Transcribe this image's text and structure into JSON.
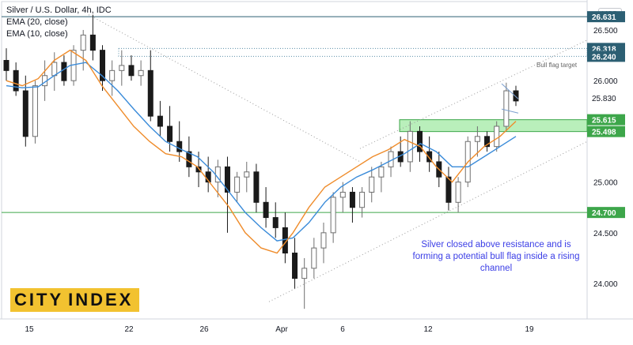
{
  "header": {
    "title": "Silver / U.S. Dollar, 4h, IDC",
    "ema20_label": "EMA (20, close)",
    "ema10_label": "EMA (10, close)"
  },
  "currency": "USD",
  "annotation": {
    "text": "Silver closed above resistance and is forming a potential bull flag inside a rising channel",
    "bull_flag_label": "Bull flag target"
  },
  "logo": {
    "word1": "CITY",
    "word2": "INDEX"
  },
  "colors": {
    "up": "#6f6f6f",
    "down": "#1a1a1a",
    "ema20": "#3a8bd9",
    "ema10": "#ef8c2b",
    "level_line": "#3da64a",
    "zone_fill": "#b9efbb",
    "zone_border": "#3da64a",
    "text_annotation": "#3b3ee6",
    "trendline": "#9a9a9a"
  },
  "chart_data": {
    "type": "candlestick",
    "title": "Silver / U.S. Dollar, 4h, IDC",
    "x_tick_labels": [
      "15",
      "22",
      "26",
      "Apr",
      "6",
      "12",
      "19"
    ],
    "y_tick_labels": [
      "24.000",
      "24.500",
      "25.000",
      "25.500",
      "26.000",
      "26.500"
    ],
    "ylim": [
      23.65,
      26.78
    ],
    "price_levels": [
      26.631,
      26.318,
      26.24,
      25.83,
      25.615,
      25.498,
      24.7
    ],
    "price_level_labels": [
      "26.631",
      "26.318",
      "26.240",
      "25.830",
      "25.615",
      "25.498",
      "24.700"
    ],
    "resistance_zone": [
      25.498,
      25.615
    ],
    "bull_flag_target_zone": [
      26.24,
      26.318
    ],
    "series": [
      {
        "name": "EMA (20, close)",
        "values": [
          25.95,
          25.93,
          25.94,
          26.05,
          26.15,
          26.18,
          26.05,
          25.9,
          25.72,
          25.55,
          25.4,
          25.32,
          25.25,
          25.1,
          24.9,
          24.7,
          24.55,
          24.42,
          24.45,
          24.6,
          24.8,
          24.95,
          25.05,
          25.12,
          25.2,
          25.28,
          25.38,
          25.3,
          25.15,
          25.15,
          25.25,
          25.35,
          25.45
        ]
      },
      {
        "name": "EMA (10, close)",
        "values": [
          26.0,
          25.95,
          26.02,
          26.2,
          26.3,
          26.2,
          25.95,
          25.75,
          25.55,
          25.4,
          25.28,
          25.25,
          25.15,
          24.95,
          24.75,
          24.5,
          24.35,
          24.3,
          24.5,
          24.75,
          24.95,
          25.05,
          25.15,
          25.25,
          25.32,
          25.42,
          25.35,
          25.15,
          25.0,
          25.2,
          25.35,
          25.45,
          25.6
        ]
      }
    ],
    "candles": [
      {
        "o": 26.2,
        "h": 26.32,
        "l": 26.0,
        "c": 26.1
      },
      {
        "o": 26.1,
        "h": 26.18,
        "l": 25.85,
        "c": 25.9
      },
      {
        "o": 25.9,
        "h": 26.05,
        "l": 25.35,
        "c": 25.45
      },
      {
        "o": 25.45,
        "h": 26.0,
        "l": 25.38,
        "c": 25.95
      },
      {
        "o": 25.95,
        "h": 26.2,
        "l": 25.8,
        "c": 26.05
      },
      {
        "o": 26.05,
        "h": 26.28,
        "l": 25.9,
        "c": 26.18
      },
      {
        "o": 26.18,
        "h": 26.25,
        "l": 25.95,
        "c": 26.0
      },
      {
        "o": 26.0,
        "h": 26.35,
        "l": 25.95,
        "c": 26.3
      },
      {
        "o": 26.3,
        "h": 26.5,
        "l": 26.1,
        "c": 26.45
      },
      {
        "o": 26.45,
        "h": 26.65,
        "l": 26.2,
        "c": 26.3
      },
      {
        "o": 26.3,
        "h": 26.35,
        "l": 25.9,
        "c": 26.0
      },
      {
        "o": 26.0,
        "h": 26.2,
        "l": 25.85,
        "c": 26.1
      },
      {
        "o": 26.1,
        "h": 26.3,
        "l": 25.95,
        "c": 26.15
      },
      {
        "o": 26.15,
        "h": 26.25,
        "l": 26.0,
        "c": 26.05
      },
      {
        "o": 26.05,
        "h": 26.2,
        "l": 25.95,
        "c": 26.1
      },
      {
        "o": 26.1,
        "h": 26.3,
        "l": 25.6,
        "c": 25.65
      },
      {
        "o": 25.65,
        "h": 25.8,
        "l": 25.45,
        "c": 25.55
      },
      {
        "o": 25.55,
        "h": 25.75,
        "l": 25.3,
        "c": 25.4
      },
      {
        "o": 25.4,
        "h": 25.6,
        "l": 25.2,
        "c": 25.3
      },
      {
        "o": 25.3,
        "h": 25.45,
        "l": 25.05,
        "c": 25.15
      },
      {
        "o": 25.15,
        "h": 25.3,
        "l": 24.95,
        "c": 25.1
      },
      {
        "o": 25.1,
        "h": 25.25,
        "l": 24.9,
        "c": 25.0
      },
      {
        "o": 25.0,
        "h": 25.22,
        "l": 24.85,
        "c": 25.15
      },
      {
        "o": 25.15,
        "h": 25.25,
        "l": 24.5,
        "c": 24.9
      },
      {
        "o": 24.9,
        "h": 25.1,
        "l": 24.8,
        "c": 25.05
      },
      {
        "o": 25.05,
        "h": 25.2,
        "l": 24.9,
        "c": 25.1
      },
      {
        "o": 25.1,
        "h": 25.18,
        "l": 24.7,
        "c": 24.8
      },
      {
        "o": 24.8,
        "h": 24.95,
        "l": 24.55,
        "c": 24.65
      },
      {
        "o": 24.65,
        "h": 24.8,
        "l": 24.45,
        "c": 24.55
      },
      {
        "o": 24.55,
        "h": 24.7,
        "l": 24.2,
        "c": 24.3
      },
      {
        "o": 24.3,
        "h": 24.45,
        "l": 23.95,
        "c": 24.05
      },
      {
        "o": 24.05,
        "h": 24.25,
        "l": 23.75,
        "c": 24.15
      },
      {
        "o": 24.15,
        "h": 24.45,
        "l": 24.05,
        "c": 24.35
      },
      {
        "o": 24.35,
        "h": 24.6,
        "l": 24.2,
        "c": 24.5
      },
      {
        "o": 24.5,
        "h": 24.9,
        "l": 24.4,
        "c": 24.85
      },
      {
        "o": 24.85,
        "h": 25.0,
        "l": 24.7,
        "c": 24.9
      },
      {
        "o": 24.9,
        "h": 24.95,
        "l": 24.6,
        "c": 24.75
      },
      {
        "o": 24.75,
        "h": 24.95,
        "l": 24.65,
        "c": 24.9
      },
      {
        "o": 24.9,
        "h": 25.15,
        "l": 24.8,
        "c": 25.05
      },
      {
        "o": 25.05,
        "h": 25.2,
        "l": 24.9,
        "c": 25.15
      },
      {
        "o": 25.15,
        "h": 25.35,
        "l": 25.05,
        "c": 25.3
      },
      {
        "o": 25.3,
        "h": 25.45,
        "l": 25.15,
        "c": 25.2
      },
      {
        "o": 25.2,
        "h": 25.6,
        "l": 25.1,
        "c": 25.5
      },
      {
        "o": 25.5,
        "h": 25.55,
        "l": 25.2,
        "c": 25.3
      },
      {
        "o": 25.3,
        "h": 25.45,
        "l": 25.1,
        "c": 25.2
      },
      {
        "o": 25.2,
        "h": 25.3,
        "l": 24.95,
        "c": 25.05
      },
      {
        "o": 25.05,
        "h": 25.15,
        "l": 24.72,
        "c": 24.8
      },
      {
        "o": 24.8,
        "h": 25.05,
        "l": 24.7,
        "c": 25.0
      },
      {
        "o": 25.0,
        "h": 25.45,
        "l": 24.95,
        "c": 25.4
      },
      {
        "o": 25.4,
        "h": 25.55,
        "l": 25.25,
        "c": 25.45
      },
      {
        "o": 25.45,
        "h": 25.5,
        "l": 25.3,
        "c": 25.35
      },
      {
        "o": 25.35,
        "h": 25.6,
        "l": 25.3,
        "c": 25.55
      },
      {
        "o": 25.55,
        "h": 25.98,
        "l": 25.5,
        "c": 25.9
      },
      {
        "o": 25.9,
        "h": 25.95,
        "l": 25.75,
        "c": 25.8
      }
    ]
  }
}
